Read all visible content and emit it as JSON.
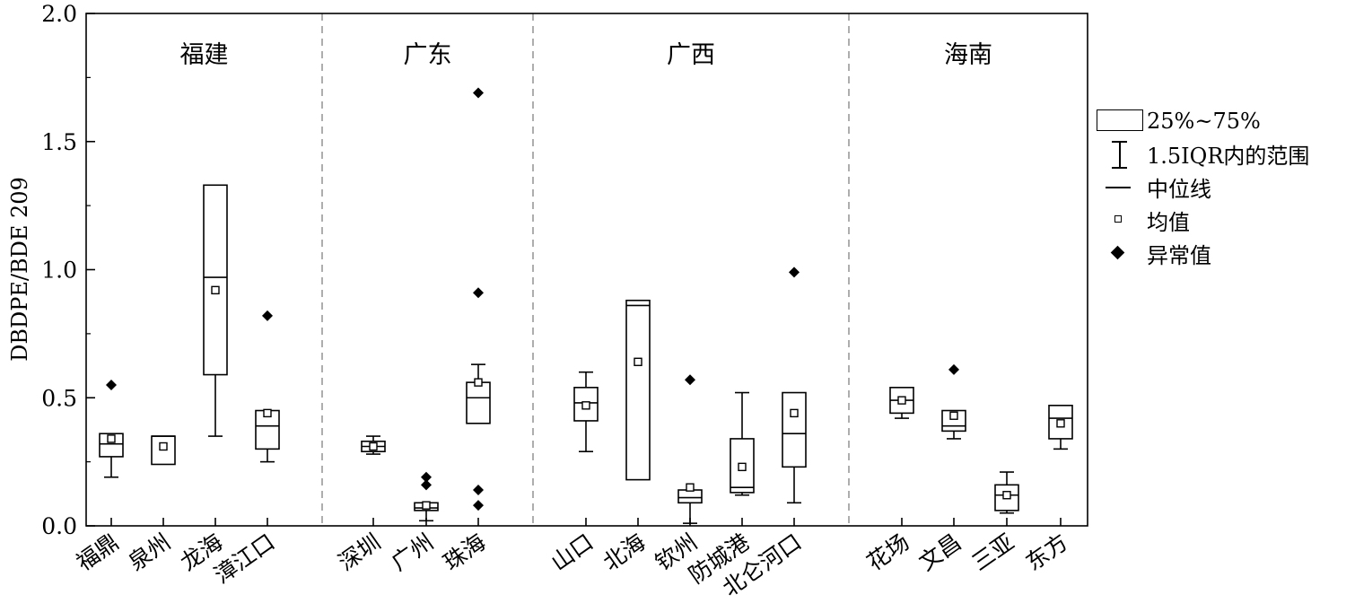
{
  "chart_data": {
    "type": "box",
    "ylabel": "DBDPE/BDE 209",
    "ylim": [
      0.0,
      2.0
    ],
    "yticks": [
      "0.0",
      "0.5",
      "1.0",
      "1.5",
      "2.0"
    ],
    "groups": [
      {
        "name": "福建",
        "sites": [
          {
            "label": "福鼎",
            "min": 0.19,
            "q1": 0.27,
            "median": 0.32,
            "q3": 0.36,
            "max": 0.36,
            "mean": 0.34,
            "outliers": [
              0.55
            ]
          },
          {
            "label": "泉州",
            "min": 0.24,
            "q1": 0.24,
            "median": 0.35,
            "q3": 0.35,
            "max": 0.35,
            "mean": 0.31,
            "outliers": []
          },
          {
            "label": "龙海",
            "min": 0.35,
            "q1": 0.59,
            "median": 0.97,
            "q3": 1.33,
            "max": 1.33,
            "mean": 0.92,
            "outliers": []
          },
          {
            "label": "漳江口",
            "min": 0.25,
            "q1": 0.3,
            "median": 0.39,
            "q3": 0.45,
            "max": 0.45,
            "mean": 0.44,
            "outliers": [
              0.82
            ]
          }
        ]
      },
      {
        "name": "广东",
        "sites": [
          {
            "label": "深圳",
            "min": 0.28,
            "q1": 0.29,
            "median": 0.31,
            "q3": 0.33,
            "max": 0.35,
            "mean": 0.31,
            "outliers": []
          },
          {
            "label": "广州",
            "min": 0.02,
            "q1": 0.06,
            "median": 0.07,
            "q3": 0.09,
            "max": 0.09,
            "mean": 0.08,
            "outliers": [
              0.16,
              0.19
            ]
          },
          {
            "label": "珠海",
            "min": 0.4,
            "q1": 0.4,
            "median": 0.5,
            "q3": 0.56,
            "max": 0.63,
            "mean": 0.56,
            "outliers": [
              0.08,
              0.14,
              0.91,
              1.69
            ]
          }
        ]
      },
      {
        "name": "广西",
        "sites": [
          {
            "label": "山口",
            "min": 0.29,
            "q1": 0.41,
            "median": 0.48,
            "q3": 0.54,
            "max": 0.6,
            "mean": 0.47,
            "outliers": []
          },
          {
            "label": "北海",
            "min": 0.18,
            "q1": 0.18,
            "median": 0.86,
            "q3": 0.88,
            "max": 0.88,
            "mean": 0.64,
            "outliers": []
          },
          {
            "label": "钦州",
            "min": 0.01,
            "q1": 0.09,
            "median": 0.11,
            "q3": 0.14,
            "max": 0.14,
            "mean": 0.15,
            "outliers": [
              0.57
            ]
          },
          {
            "label": "防城港",
            "min": 0.12,
            "q1": 0.13,
            "median": 0.15,
            "q3": 0.34,
            "max": 0.52,
            "mean": 0.23,
            "outliers": []
          },
          {
            "label": "北仑河口",
            "min": 0.09,
            "q1": 0.23,
            "median": 0.36,
            "q3": 0.52,
            "max": 0.52,
            "mean": 0.44,
            "outliers": [
              0.99
            ]
          }
        ]
      },
      {
        "name": "海南",
        "sites": [
          {
            "label": "花场",
            "min": 0.42,
            "q1": 0.44,
            "median": 0.49,
            "q3": 0.54,
            "max": 0.54,
            "mean": 0.49,
            "outliers": []
          },
          {
            "label": "文昌",
            "min": 0.34,
            "q1": 0.37,
            "median": 0.39,
            "q3": 0.45,
            "max": 0.45,
            "mean": 0.43,
            "outliers": [
              0.61
            ]
          },
          {
            "label": "三亚",
            "min": 0.05,
            "q1": 0.06,
            "median": 0.12,
            "q3": 0.16,
            "max": 0.21,
            "mean": 0.12,
            "outliers": []
          },
          {
            "label": "东方",
            "min": 0.3,
            "q1": 0.34,
            "median": 0.42,
            "q3": 0.47,
            "max": 0.47,
            "mean": 0.4,
            "outliers": []
          }
        ]
      }
    ],
    "legend": {
      "position": "right",
      "items": [
        {
          "symbol": "box",
          "label": "25%~75%"
        },
        {
          "symbol": "whisker",
          "label": "1.5IQR内的范围"
        },
        {
          "symbol": "median-line",
          "label": "中位线"
        },
        {
          "symbol": "mean-square",
          "label": "均值"
        },
        {
          "symbol": "outlier-diamond",
          "label": "异常值"
        }
      ]
    },
    "colors": {
      "box": "#000000",
      "divider": "#999999"
    }
  }
}
